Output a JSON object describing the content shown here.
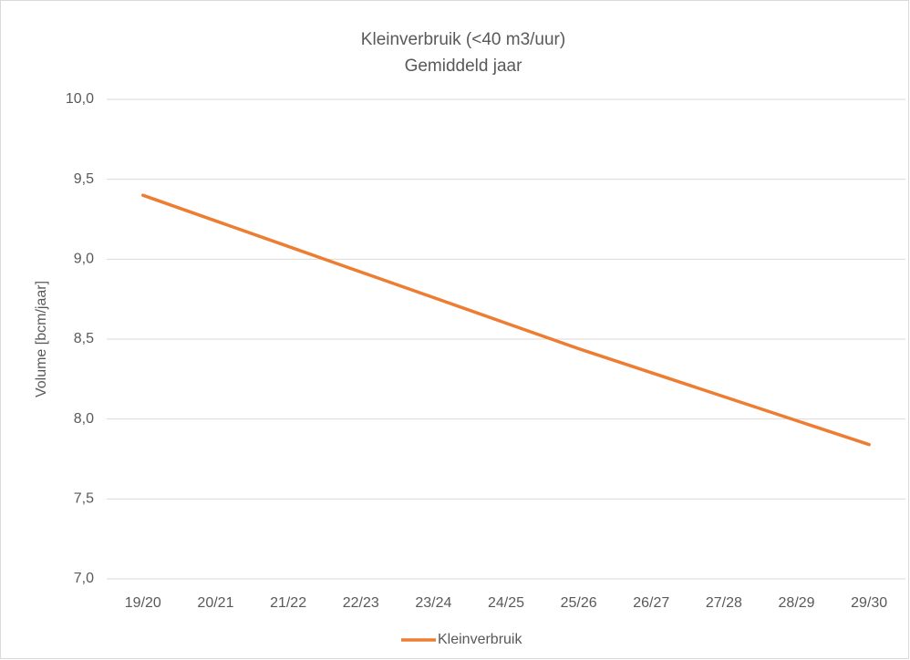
{
  "chart_data": {
    "type": "line",
    "title": "Kleinverbruik (<40 m3/uur)",
    "subtitle": "Gemiddeld jaar",
    "y_label": "Volume [bcm/jaar]",
    "categories": [
      "19/20",
      "20/21",
      "21/22",
      "22/23",
      "23/24",
      "24/25",
      "25/26",
      "26/27",
      "27/28",
      "28/29",
      "29/30"
    ],
    "series": [
      {
        "name": "Kleinverbruik",
        "color": "#ed7d31",
        "values": [
          9.4,
          9.24,
          9.08,
          8.92,
          8.76,
          8.6,
          8.44,
          8.29,
          8.14,
          7.99,
          7.84
        ]
      }
    ],
    "ylim": [
      7.0,
      10.0
    ],
    "yticks": [
      {
        "value": 7.0,
        "label": "7,0"
      },
      {
        "value": 7.5,
        "label": "7,5"
      },
      {
        "value": 8.0,
        "label": "8,0"
      },
      {
        "value": 8.5,
        "label": "8,5"
      },
      {
        "value": 9.0,
        "label": "9,0"
      },
      {
        "value": 9.5,
        "label": "9,5"
      },
      {
        "value": 10.0,
        "label": "10,0"
      }
    ],
    "grid": true,
    "legend": "bottom"
  }
}
